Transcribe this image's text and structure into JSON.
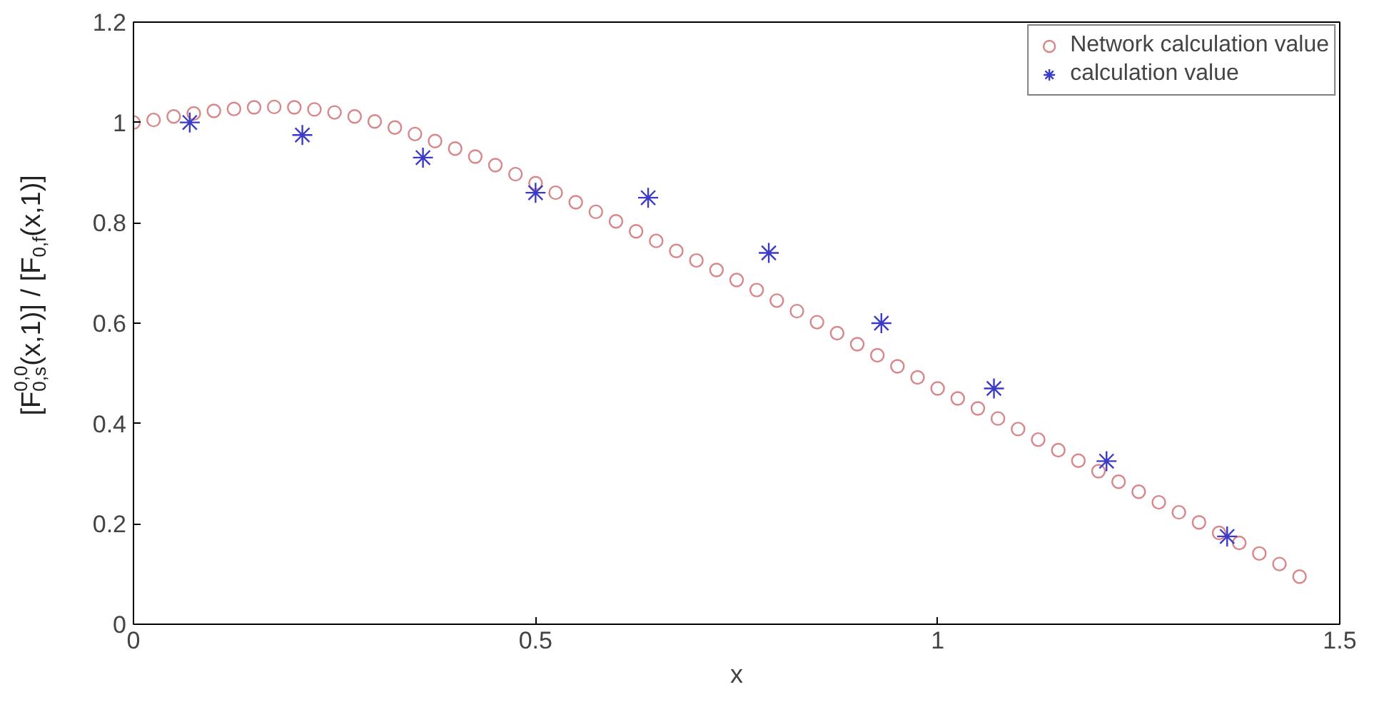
{
  "chart_data": {
    "type": "scatter",
    "xlabel": "x",
    "ylabel": "[F$^{0,0}$$_{0,s}$(x,1)] / [F$_{0,f}$(x,1)]",
    "xlim": [
      0,
      1.5
    ],
    "ylim": [
      0,
      1.2
    ],
    "xticks": [
      0,
      0.5,
      1,
      1.5
    ],
    "yticks": [
      0,
      0.2,
      0.4,
      0.6,
      0.8,
      1,
      1.2
    ],
    "grid": false,
    "legend": "top right",
    "series": [
      {
        "name": "Network calculation value",
        "color": "#d9868a",
        "marker": "circle",
        "x": [
          0,
          0.025,
          0.05,
          0.075,
          0.1,
          0.125,
          0.15,
          0.175,
          0.2,
          0.225,
          0.25,
          0.275,
          0.3,
          0.325,
          0.35,
          0.375,
          0.4,
          0.425,
          0.45,
          0.475,
          0.5,
          0.525,
          0.55,
          0.575,
          0.6,
          0.625,
          0.65,
          0.675,
          0.7,
          0.725,
          0.75,
          0.775,
          0.8,
          0.825,
          0.85,
          0.875,
          0.9,
          0.925,
          0.95,
          0.975,
          1.0,
          1.025,
          1.05,
          1.075,
          1.1,
          1.125,
          1.15,
          1.175,
          1.2,
          1.225,
          1.25,
          1.275,
          1.3,
          1.325,
          1.35,
          1.375,
          1.4,
          1.425,
          1.45
        ],
        "values": [
          1.0,
          1.005,
          1.012,
          1.018,
          1.023,
          1.027,
          1.03,
          1.031,
          1.03,
          1.026,
          1.02,
          1.012,
          1.002,
          0.99,
          0.977,
          0.963,
          0.948,
          0.932,
          0.915,
          0.897,
          0.879,
          0.86,
          0.841,
          0.822,
          0.803,
          0.783,
          0.764,
          0.744,
          0.725,
          0.706,
          0.686,
          0.666,
          0.645,
          0.624,
          0.602,
          0.58,
          0.558,
          0.536,
          0.514,
          0.492,
          0.47,
          0.45,
          0.43,
          0.41,
          0.389,
          0.368,
          0.347,
          0.326,
          0.305,
          0.284,
          0.264,
          0.243,
          0.223,
          0.203,
          0.182,
          0.162,
          0.141,
          0.12,
          0.095
        ]
      },
      {
        "name": "calculation value",
        "color": "#3b3bc8",
        "marker": "cross",
        "x": [
          0.07,
          0.21,
          0.36,
          0.5,
          0.64,
          0.79,
          0.93,
          1.07,
          1.21,
          1.36
        ],
        "values": [
          1.0,
          0.975,
          0.93,
          0.86,
          0.85,
          0.74,
          0.6,
          0.47,
          0.325,
          0.175
        ]
      }
    ]
  }
}
